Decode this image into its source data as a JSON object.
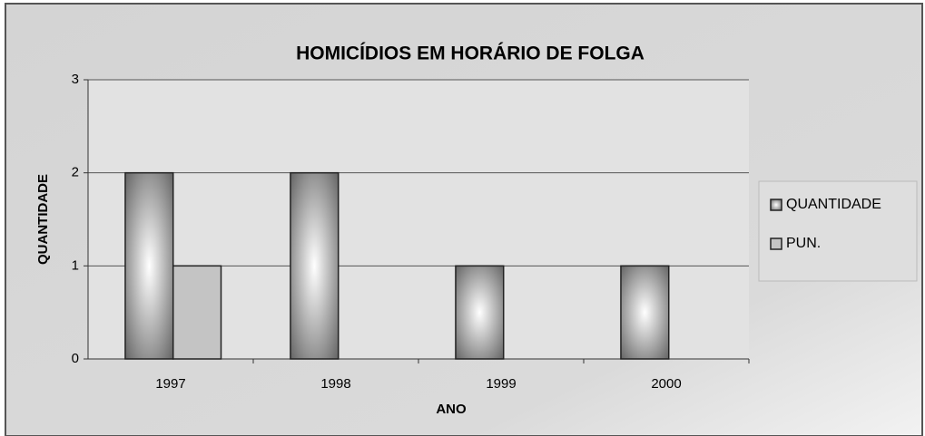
{
  "chart_data": {
    "type": "bar",
    "title": "HOMICÍDIOS EM HORÁRIO DE FOLGA",
    "x_label": "ANO",
    "y_label": "QUANTIDADE",
    "categories": [
      "1997",
      "1998",
      "1999",
      "2000"
    ],
    "series": [
      {
        "name": "QUANTIDADE",
        "color": "#5a5a5a",
        "values": [
          2,
          2,
          1,
          1
        ]
      },
      {
        "name": "PUN.",
        "color": "#c4c4c4",
        "values": [
          1,
          0,
          0,
          0
        ]
      }
    ],
    "ylim": [
      0,
      3
    ],
    "yticks": [
      0,
      1,
      2,
      3
    ],
    "grid": true,
    "legend": "right"
  }
}
